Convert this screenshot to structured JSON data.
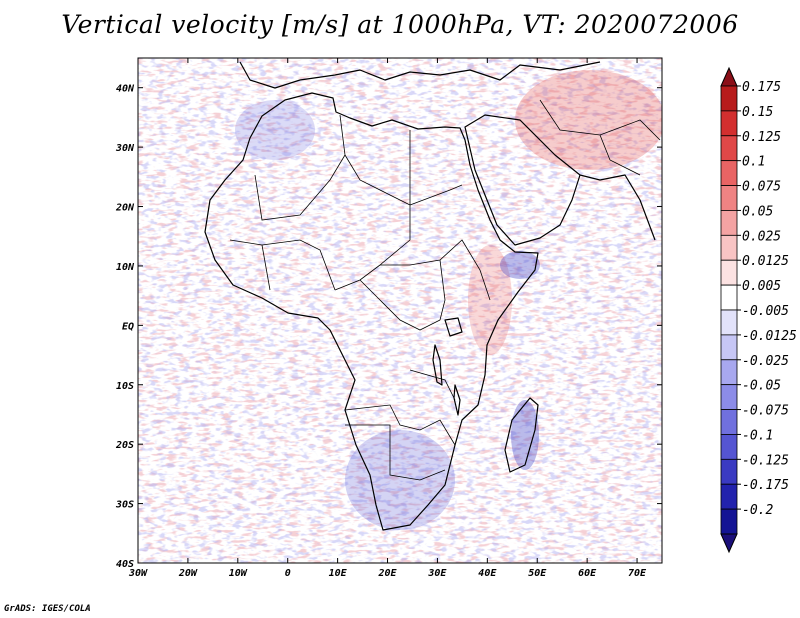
{
  "title": "Vertical velocity [m/s] at 1000hPa, VT: 2020072006",
  "credit": "GrADS: IGES/COLA",
  "map": {
    "lon_range": [
      -30,
      75
    ],
    "lat_range": [
      -40,
      45
    ],
    "x_ticks": [
      {
        "lon": -30,
        "label": "30W"
      },
      {
        "lon": -20,
        "label": "20W"
      },
      {
        "lon": -10,
        "label": "10W"
      },
      {
        "lon": 0,
        "label": "0"
      },
      {
        "lon": 10,
        "label": "10E"
      },
      {
        "lon": 20,
        "label": "20E"
      },
      {
        "lon": 30,
        "label": "30E"
      },
      {
        "lon": 40,
        "label": "40E"
      },
      {
        "lon": 50,
        "label": "50E"
      },
      {
        "lon": 60,
        "label": "60E"
      },
      {
        "lon": 70,
        "label": "70E"
      }
    ],
    "y_ticks": [
      {
        "lat": 40,
        "label": "40N"
      },
      {
        "lat": 30,
        "label": "30N"
      },
      {
        "lat": 20,
        "label": "20N"
      },
      {
        "lat": 10,
        "label": "10N"
      },
      {
        "lat": 0,
        "label": "EQ"
      },
      {
        "lat": -10,
        "label": "10S"
      },
      {
        "lat": -20,
        "label": "20S"
      },
      {
        "lat": -30,
        "label": "30S"
      },
      {
        "lat": -40,
        "label": "40S"
      }
    ]
  },
  "colorbar": {
    "colors": [
      "#8b0f18",
      "#b71c1c",
      "#d32f2f",
      "#e04848",
      "#e96464",
      "#ef8383",
      "#f4a3a3",
      "#f8c4c4",
      "#fce2e2",
      "#ffffff",
      "#e2e2fa",
      "#c6c6f5",
      "#a8a8ef",
      "#8c8ce8",
      "#7070de",
      "#5555d2",
      "#3a3ac2",
      "#2222ad",
      "#141494",
      "#1b0f7a"
    ],
    "labels": [
      "0.175",
      "0.15",
      "0.125",
      "0.1",
      "0.075",
      "0.05",
      "0.025",
      "0.0125",
      "0.005",
      "-0.005",
      "-0.0125",
      "-0.025",
      "-0.05",
      "-0.075",
      "-0.1",
      "-0.125",
      "-0.175",
      "-0.2"
    ]
  }
}
